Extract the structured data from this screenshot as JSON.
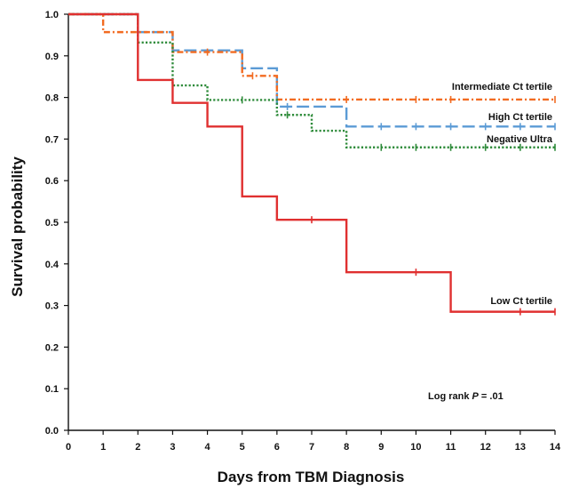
{
  "chart_data": {
    "type": "line",
    "step": true,
    "xlabel": "Days from TBM Diagnosis",
    "ylabel": "Survival probability",
    "xlim": [
      0,
      14
    ],
    "ylim": [
      0,
      1.0
    ],
    "x_ticks": [
      "0",
      "1",
      "2",
      "3",
      "4",
      "5",
      "6",
      "7",
      "8",
      "9",
      "10",
      "11",
      "12",
      "13",
      "14"
    ],
    "y_ticks": [
      "0.0",
      "0.1",
      "0.2",
      "0.3",
      "0.4",
      "0.5",
      "0.6",
      "0.7",
      "0.8",
      "0.9",
      "1.0"
    ],
    "grid": false,
    "annotation": {
      "prefix": "Log rank ",
      "italic": "P",
      "suffix": " = .01"
    },
    "series": [
      {
        "name": "Intermediate Ct tertile",
        "color": "#f26b21",
        "dash": "dashdot",
        "steps": [
          [
            0,
            1.0
          ],
          [
            1,
            0.957
          ],
          [
            3,
            0.909
          ],
          [
            5,
            0.852
          ],
          [
            6,
            0.795
          ]
        ],
        "end": 14,
        "censor": [
          4,
          5.3,
          8,
          10,
          11,
          14
        ]
      },
      {
        "name": "High Ct tertile",
        "color": "#5b9bd5",
        "dash": "longdash",
        "steps": [
          [
            0,
            1.0
          ],
          [
            2,
            0.957
          ],
          [
            3,
            0.913
          ],
          [
            5,
            0.87
          ],
          [
            6,
            0.778
          ],
          [
            8,
            0.73
          ]
        ],
        "end": 14,
        "censor": [
          6.3,
          9,
          10,
          11,
          12,
          13,
          14
        ]
      },
      {
        "name": "Negative Ultra",
        "color": "#2e8b3a",
        "dash": "dotted",
        "steps": [
          [
            0,
            1.0
          ],
          [
            2,
            0.932
          ],
          [
            3,
            0.829
          ],
          [
            4,
            0.794
          ],
          [
            6,
            0.758
          ],
          [
            7,
            0.72
          ],
          [
            8,
            0.68
          ]
        ],
        "end": 14,
        "censor": [
          5,
          6.3,
          9,
          10,
          11,
          12,
          13,
          14
        ]
      },
      {
        "name": "Low Ct tertile",
        "color": "#e03030",
        "dash": "solid",
        "steps": [
          [
            0,
            1.0
          ],
          [
            2,
            0.842
          ],
          [
            3,
            0.787
          ],
          [
            4,
            0.73
          ],
          [
            5,
            0.562
          ],
          [
            6,
            0.506
          ],
          [
            8,
            0.38
          ],
          [
            11,
            0.285
          ]
        ],
        "end": 14,
        "censor": [
          7,
          10,
          13,
          14
        ]
      }
    ]
  }
}
